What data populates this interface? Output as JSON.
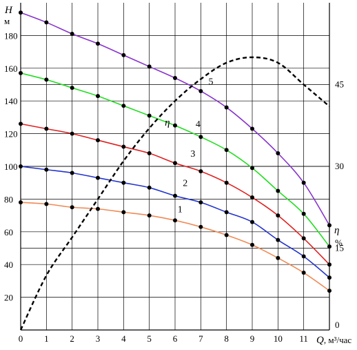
{
  "chart_data": {
    "type": "line",
    "x": [
      0,
      1,
      2,
      3,
      4,
      5,
      6,
      7,
      8,
      9,
      10,
      11,
      12
    ],
    "xlim": [
      0,
      12
    ],
    "x_ticks": [
      0,
      1,
      2,
      3,
      4,
      5,
      6,
      7,
      8,
      9,
      10,
      11
    ],
    "x_axis_label": {
      "symbol": "Q",
      "unit": ", м³/час"
    },
    "head_axis": {
      "symbol": "H",
      "unit": "м",
      "ylim": [
        0,
        200
      ],
      "ticks": [
        20,
        40,
        60,
        80,
        100,
        120,
        140,
        160,
        180
      ]
    },
    "efficiency_axis": {
      "symbol": "η",
      "unit": "%",
      "ylim": [
        0,
        60
      ],
      "ticks": [
        0,
        15,
        30,
        45
      ]
    },
    "grid": true,
    "series": [
      {
        "name": "1",
        "axis": "head",
        "color": "#f08a55",
        "values": [
          78,
          77,
          75,
          74,
          72,
          70,
          67,
          63,
          58,
          52,
          44,
          35,
          24
        ]
      },
      {
        "name": "2",
        "axis": "head",
        "color": "#2233cc",
        "values": [
          100,
          98,
          96,
          93,
          90,
          87,
          82,
          78,
          72,
          66,
          55,
          45,
          32
        ]
      },
      {
        "name": "3",
        "axis": "head",
        "color": "#e02020",
        "values": [
          126,
          123,
          120,
          116,
          112,
          108,
          102,
          97,
          90,
          81,
          70,
          56,
          40
        ]
      },
      {
        "name": "4",
        "axis": "head",
        "color": "#22dd22",
        "values": [
          157,
          153,
          148,
          143,
          137,
          131,
          125,
          118,
          110,
          99,
          85,
          71,
          51
        ]
      },
      {
        "name": "5",
        "axis": "head",
        "color": "#8833cc",
        "values": [
          194,
          188,
          181,
          175,
          168,
          161,
          154,
          146,
          136,
          123,
          108,
          90,
          64
        ]
      },
      {
        "name": "η",
        "axis": "efficiency",
        "color": "#000000",
        "dashed": true,
        "values": [
          0,
          10,
          17,
          24,
          31,
          37,
          42,
          46,
          49,
          50,
          49,
          45,
          41
        ]
      }
    ],
    "curve_labels": [
      {
        "text": "1",
        "x": 6.1,
        "y": 72
      },
      {
        "text": "2",
        "x": 6.3,
        "y": 88
      },
      {
        "text": "3",
        "x": 6.6,
        "y": 106
      },
      {
        "text": "4",
        "x": 6.8,
        "y": 124
      },
      {
        "text": "5",
        "x": 7.3,
        "y": 150
      },
      {
        "text": "η",
        "x": 5.6,
        "y": 125
      }
    ]
  }
}
